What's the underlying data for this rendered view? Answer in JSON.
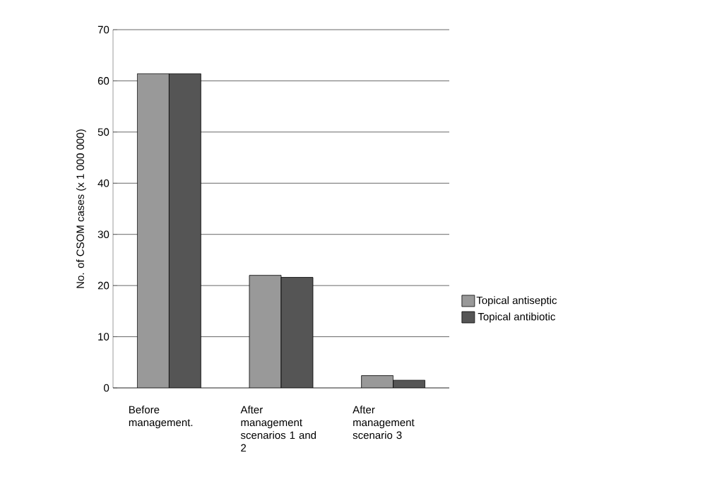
{
  "chart_data": {
    "type": "bar",
    "ylabel": "No. of CSOM cases (x 1 000 000)",
    "categories": [
      "Before management.",
      "After management scenarios 1 and 2",
      "After management scenario 3"
    ],
    "series": [
      {
        "name": "Topical antiseptic",
        "color": "#999999",
        "values": [
          61.4,
          22.0,
          2.4
        ]
      },
      {
        "name": "Topical antibiotic",
        "color": "#555555",
        "values": [
          61.4,
          21.6,
          1.5
        ]
      }
    ],
    "ylim": [
      0,
      70
    ],
    "yticks": [
      0,
      10,
      20,
      30,
      40,
      50,
      60,
      70
    ],
    "grid": "y",
    "legend": "right"
  }
}
